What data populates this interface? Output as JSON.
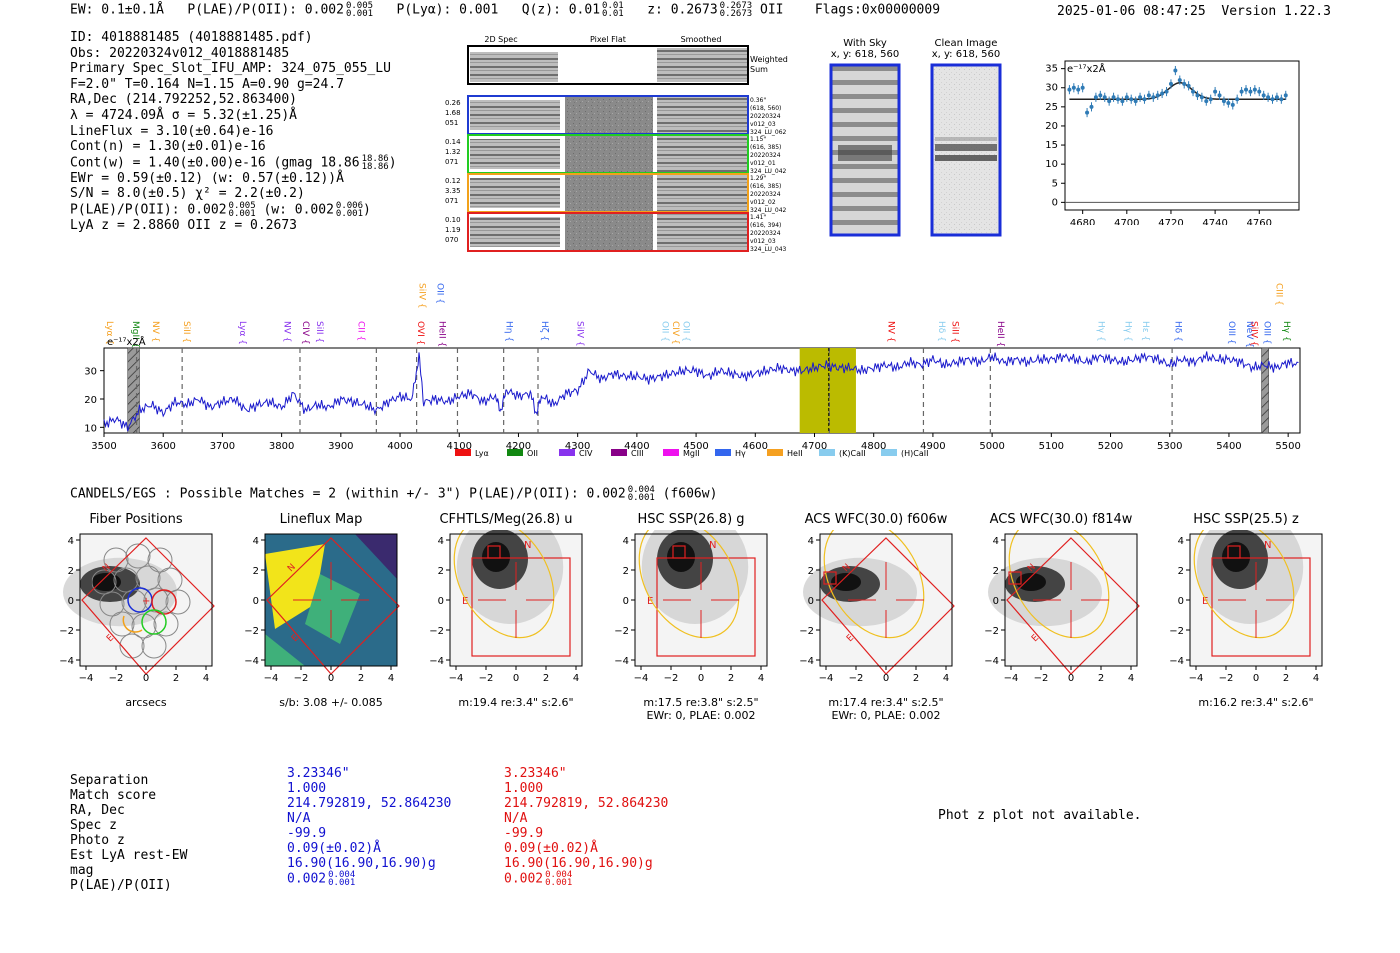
{
  "header": {
    "ew": "EW: 0.1±0.1Å",
    "plae_label": "P(LAE)/P(OII): 0.002",
    "plae_hi": "0.005",
    "plae_lo": "0.001",
    "plya": "P(Lyα): 0.001",
    "qz_label": "Q(z): 0.01",
    "qz_hi": "0.01",
    "qz_lo": "0.01",
    "z_label": "z: 0.2673",
    "z_hi": "0.2673",
    "z_lo": "0.2673",
    "z_line": "OII",
    "flags": "Flags:0x00000009",
    "timestamp": "2025-01-06 08:47:25",
    "version": "Version 1.22.3"
  },
  "info": {
    "id": "ID: 4018881485 (4018881485.pdf)",
    "obs": "Obs: 20220324v012_4018881485",
    "primary": "Primary Spec_Slot_IFU_AMP: 324_075_055_LU",
    "fiber": "F=2.0\"  T=0.164  N=1.15  A=0.90  g=24.7",
    "radec": "RA,Dec (214.792252,52.863400)",
    "lambda": "λ = 4724.09Å  σ = 5.32(±1.25)Å",
    "lineflux": "LineFlux = 3.10(±0.64)e-16",
    "contn": "Cont(n) = 1.30(±0.01)e-16",
    "contw": "Cont(w) = 1.40(±0.00)e-16 (gmag 18.86",
    "contw_hi": "18.86",
    "contw_lo": "18.86",
    "contw_end": ")",
    "ewr": "EWr = 0.59(±0.12) (w: 0.57(±0.12))Å",
    "sn": "S/N = 8.0(±0.5)  χ² = 2.2(±0.2)",
    "plae": "P(LAE)/P(OII): 0.002",
    "plae_hi": "0.005",
    "plae_lo": "0.001",
    "plae_w": "(w: 0.002",
    "plae_w_hi": "0.006",
    "plae_w_lo": "0.001",
    "plae_w_end": ")",
    "lyaz": "LyA z = 2.8860  OII z = 0.2673"
  },
  "spec2d": {
    "col_headers": [
      "2D Spec",
      "Pixel Flat",
      "Smoothed"
    ],
    "weighted_label_1": "Weighted",
    "weighted_label_2": "Sum",
    "rows": [
      {
        "left": [
          "0.26",
          "1.68",
          "051"
        ],
        "right": [
          "0.36\"",
          "(618, 560)",
          "20220324",
          "v012_03",
          "324_LU_062"
        ],
        "color": "#1f3bd1"
      },
      {
        "left": [
          "0.14",
          "1.32",
          "071"
        ],
        "right": [
          "1.15\"",
          "(616, 385)",
          "20220324",
          "v012_01",
          "324_LU_042"
        ],
        "color": "#22cc22"
      },
      {
        "left": [
          "0.12",
          "3.35",
          "071"
        ],
        "right": [
          "1.29\"",
          "(616, 385)",
          "20220324",
          "v012_02",
          "324_LU_042"
        ],
        "color": "#f2a11a"
      },
      {
        "left": [
          "0.10",
          "1.19",
          "070"
        ],
        "right": [
          "1.41\"",
          "(616, 394)",
          "20220324",
          "v012_03",
          "324_LU_043"
        ],
        "color": "#e02020"
      }
    ]
  },
  "sky_panels": {
    "with_sky_title": "With Sky",
    "with_sky_xy": "x, y: 618, 560",
    "clean_title": "Clean Image",
    "clean_xy": "x, y: 618, 560"
  },
  "zoom_chart": {
    "unit_label": "e⁻¹⁷x2Å",
    "colors": {
      "points": "#2f7bb6",
      "fit": "#222222"
    }
  },
  "main_spectrum": {
    "unit_label": "e⁻¹⁷x2Å",
    "legend": [
      {
        "name": "Lyα",
        "color": "#ee1111"
      },
      {
        "name": "OII",
        "color": "#118811"
      },
      {
        "name": "CIV",
        "color": "#8833ee"
      },
      {
        "name": "CIII",
        "color": "#880088"
      },
      {
        "name": "MgII",
        "color": "#ee11ee"
      },
      {
        "name": "Hγ",
        "color": "#3366ee"
      },
      {
        "name": "HeII",
        "color": "#f5a020"
      },
      {
        "name": "(K)CaII",
        "color": "#88ccee"
      },
      {
        "name": "(H)CaII",
        "color": "#88ccee"
      }
    ],
    "line_labels": [
      {
        "name": "Lyα",
        "x": 3500,
        "color": "#f5a020",
        "row": 1
      },
      {
        "name": "MgII",
        "x": 3544,
        "color": "#118811",
        "row": 1
      },
      {
        "name": "NV",
        "x": 3578,
        "color": "#f5a020",
        "row": 1
      },
      {
        "name": "SiII",
        "x": 3630,
        "color": "#f5a020",
        "row": 1
      },
      {
        "name": "Lyα",
        "x": 3725,
        "color": "#8833ee",
        "row": 1
      },
      {
        "name": "NV",
        "x": 3800,
        "color": "#8833ee",
        "row": 1
      },
      {
        "name": "CIV",
        "x": 3831,
        "color": "#880088",
        "row": 1
      },
      {
        "name": "SiII",
        "x": 3855,
        "color": "#8833ee",
        "row": 1
      },
      {
        "name": "CII",
        "x": 3925,
        "color": "#ee11ee",
        "row": 1
      },
      {
        "name": "SiIV",
        "x": 4028,
        "color": "#f5a020",
        "row": 0
      },
      {
        "name": "OVI",
        "x": 4025,
        "color": "#ee1111",
        "row": 1
      },
      {
        "name": "OII",
        "x": 4058,
        "color": "#3366ee",
        "row": 0
      },
      {
        "name": "HeII",
        "x": 4062,
        "color": "#880088",
        "row": 1
      },
      {
        "name": "Hη",
        "x": 4175,
        "color": "#3366ee",
        "row": 1
      },
      {
        "name": "Hζ",
        "x": 4235,
        "color": "#3366ee",
        "row": 1
      },
      {
        "name": "SiIV",
        "x": 4295,
        "color": "#8833ee",
        "row": 1
      },
      {
        "name": "OII",
        "x": 4438,
        "color": "#88ccee",
        "row": 1
      },
      {
        "name": "CIV",
        "x": 4456,
        "color": "#f5a020",
        "row": 1
      },
      {
        "name": "OII",
        "x": 4474,
        "color": "#88ccee",
        "row": 1
      },
      {
        "name": "NV",
        "x": 4820,
        "color": "#ee1111",
        "row": 1
      },
      {
        "name": "Hδ",
        "x": 4905,
        "color": "#88ccee",
        "row": 1
      },
      {
        "name": "SiII",
        "x": 4928,
        "color": "#ee1111",
        "row": 1
      },
      {
        "name": "HeII",
        "x": 5005,
        "color": "#880088",
        "row": 1
      },
      {
        "name": "Hγ",
        "x": 5175,
        "color": "#88ccee",
        "row": 1
      },
      {
        "name": "Hγ",
        "x": 5220,
        "color": "#88ccee",
        "row": 1
      },
      {
        "name": "Hε",
        "x": 5250,
        "color": "#88ccee",
        "row": 1
      },
      {
        "name": "Hδ",
        "x": 5305,
        "color": "#3366ee",
        "row": 1
      },
      {
        "name": "OIII",
        "x": 5395,
        "color": "#3366ee",
        "row": 1
      },
      {
        "name": "NeV",
        "x": 5425,
        "color": "#3366ee",
        "row": 1
      },
      {
        "name": "SiIV",
        "x": 5433,
        "color": "#ee1111",
        "row": 1
      },
      {
        "name": "OIII",
        "x": 5455,
        "color": "#3366ee",
        "row": 1
      },
      {
        "name": "CIII",
        "x": 5475,
        "color": "#f5a020",
        "row": 0
      },
      {
        "name": "Hγ",
        "x": 5488,
        "color": "#118811",
        "row": 1
      }
    ]
  },
  "chart_data": [
    {
      "type": "scatter",
      "title": "",
      "xlabel": "",
      "ylabel": "e⁻¹⁷x2Å",
      "xlim": [
        4672,
        4778
      ],
      "ylim": [
        -2,
        37
      ],
      "xticks": [
        4680,
        4700,
        4720,
        4740,
        4760
      ],
      "yticks": [
        0,
        5,
        10,
        15,
        20,
        25,
        30,
        35
      ],
      "x": [
        4674,
        4676,
        4678,
        4680,
        4682,
        4684,
        4686,
        4688,
        4690,
        4692,
        4694,
        4696,
        4698,
        4700,
        4702,
        4704,
        4706,
        4708,
        4710,
        4712,
        4714,
        4716,
        4718,
        4720,
        4722,
        4724,
        4726,
        4728,
        4730,
        4732,
        4734,
        4736,
        4738,
        4740,
        4742,
        4744,
        4746,
        4748,
        4750,
        4752,
        4754,
        4756,
        4758,
        4760,
        4762,
        4764,
        4766,
        4768,
        4770,
        4772
      ],
      "values": [
        29.5,
        30,
        29.5,
        30,
        23.5,
        25,
        27.5,
        28,
        27.5,
        26.5,
        27.5,
        27,
        26.5,
        27.5,
        27,
        26.5,
        27.5,
        27,
        28,
        27.5,
        28,
        28.5,
        29,
        31,
        34.5,
        32,
        31,
        30.5,
        29,
        28,
        27.5,
        26.5,
        27,
        29,
        28,
        26.5,
        26,
        25.5,
        27,
        29,
        29.5,
        29,
        29.5,
        29,
        28,
        27.5,
        27,
        27.5,
        27,
        28
      ],
      "series": [
        {
          "name": "gaussian fit",
          "center": 4724.09,
          "sigma": 5.32,
          "continuum": 27.0,
          "peak": 31.3
        }
      ]
    },
    {
      "type": "line",
      "title": "",
      "xlabel": "",
      "ylabel": "e⁻¹⁷x2Å",
      "xlim": [
        3500,
        5520
      ],
      "ylim": [
        8,
        38
      ],
      "xticks": [
        3500,
        3600,
        3700,
        3800,
        3900,
        4000,
        4100,
        4200,
        4300,
        4400,
        4500,
        4600,
        4700,
        4800,
        4900,
        5000,
        5100,
        5200,
        5300,
        5400,
        5500
      ],
      "yticks": [
        10,
        20,
        30
      ],
      "x": [
        3500,
        3520,
        3540,
        3560,
        3580,
        3600,
        3620,
        3640,
        3660,
        3680,
        3700,
        3720,
        3740,
        3760,
        3780,
        3800,
        3820,
        3840,
        3860,
        3880,
        3900,
        3920,
        3940,
        3960,
        3980,
        4000,
        4020,
        4032,
        4040,
        4060,
        4080,
        4100,
        4120,
        4140,
        4160,
        4170,
        4180,
        4200,
        4220,
        4230,
        4240,
        4260,
        4280,
        4300,
        4320,
        4340,
        4360,
        4380,
        4400,
        4420,
        4440,
        4460,
        4480,
        4500,
        4520,
        4540,
        4560,
        4580,
        4600,
        4620,
        4640,
        4660,
        4680,
        4700,
        4720,
        4740,
        4760,
        4780,
        4800,
        4820,
        4840,
        4860,
        4880,
        4900,
        4920,
        4940,
        4960,
        4980,
        5000,
        5020,
        5040,
        5060,
        5080,
        5100,
        5120,
        5140,
        5160,
        5180,
        5200,
        5220,
        5240,
        5260,
        5280,
        5300,
        5320,
        5340,
        5360,
        5380,
        5400,
        5420,
        5440,
        5460,
        5480,
        5500,
        5520
      ],
      "values": [
        11,
        13,
        10,
        16,
        18,
        15,
        19,
        18,
        20,
        17,
        19,
        20,
        16,
        18,
        19,
        17,
        22,
        16,
        18,
        17,
        20,
        19,
        18,
        16,
        19,
        21,
        20,
        35,
        19,
        20,
        19,
        21,
        22,
        19,
        21,
        16,
        23,
        21,
        22,
        15,
        21,
        18,
        22,
        23,
        30,
        27,
        29,
        28,
        28,
        27,
        28,
        29,
        30,
        30,
        28,
        30,
        29,
        28,
        29,
        30,
        31,
        30,
        30,
        31,
        32,
        31,
        31,
        30,
        31,
        32,
        31,
        33,
        32,
        34,
        32,
        33,
        34,
        33,
        35,
        33,
        34,
        33,
        34,
        34,
        35,
        34,
        33,
        35,
        34,
        33,
        34,
        35,
        34,
        32,
        34,
        33,
        35,
        34,
        34,
        33,
        31,
        32,
        31,
        33,
        32
      ],
      "shaded_regions": [
        {
          "range": [
            4675,
            4770
          ],
          "color": "#bbbb00"
        }
      ],
      "hatched_regions": [
        [
          3540,
          3560
        ],
        [
          5455,
          5467
        ]
      ],
      "marked_lines": [
        4724.09
      ],
      "dashed_lines": [
        3555,
        3632,
        3831,
        3960,
        4028,
        4097,
        4175,
        4233,
        4725,
        4884,
        4997,
        5304
      ]
    }
  ],
  "matches": {
    "summary": "CANDELS/EGS : Possible Matches = 2 (within +/- 3\")  P(LAE)/P(OII): 0.002",
    "summary_hi": "0.004",
    "summary_lo": "0.001",
    "summary_end": "(f606w)"
  },
  "cutouts": [
    {
      "title": "Fiber Positions",
      "foot1": "arcsecs",
      "foot2": ""
    },
    {
      "title": "Lineflux Map",
      "foot1": "s/b: 3.08 +/- 0.085",
      "foot2": ""
    },
    {
      "title": "CFHTLS/Meg(26.8) u",
      "foot1": "m:19.4  re:3.4\"  s:2.6\"",
      "foot2": ""
    },
    {
      "title": "HSC SSP(26.8) g",
      "foot1": "m:17.5  re:3.8\"  s:2.5\"",
      "foot2": "EWr: 0, PLAE: 0.002"
    },
    {
      "title": "ACS WFC(30.0) f606w",
      "foot1": "m:17.4  re:3.4\"  s:2.5\"",
      "foot2": "EWr: 0, PLAE: 0.002"
    },
    {
      "title": "ACS WFC(30.0) f814w",
      "foot1": "",
      "foot2": ""
    },
    {
      "title": "HSC SSP(25.5) z",
      "foot1": "m:16.2  re:3.4\"  s:2.6\"",
      "foot2": ""
    }
  ],
  "cutout_ticks": [
    "−4",
    "−2",
    "0",
    "2",
    "4"
  ],
  "match_table": {
    "labels": [
      "Separation",
      "Match score",
      "RA, Dec",
      "Spec z",
      "Photo z",
      "Est LyA rest-EW",
      "mag",
      "P(LAE)/P(OII)"
    ],
    "col1": [
      "3.23346\"",
      "1.000",
      "214.792819, 52.864230",
      "N/A",
      "-99.9",
      "0.09(±0.02)Å",
      "16.90(16.90,16.90)g",
      "0.002"
    ],
    "col1_plae_hi": "0.004",
    "col1_plae_lo": "0.001",
    "col2": [
      "3.23346\"",
      "1.000",
      "214.792819, 52.864230",
      "N/A",
      "-99.9",
      "0.09(±0.02)Å",
      "16.90(16.90,16.90)g",
      "0.002"
    ],
    "col2_plae_hi": "0.004",
    "col2_plae_lo": "0.001",
    "col1_color": "#1010d0",
    "col2_color": "#e01010",
    "photz": "Phot z plot not available."
  }
}
